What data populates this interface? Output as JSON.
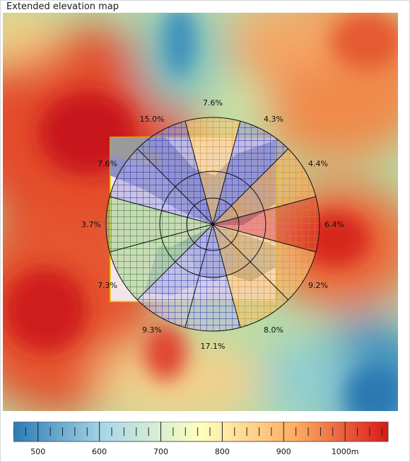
{
  "title": "Extended elevation map",
  "sectors": [
    {
      "label": "7.6%",
      "bearing": 0
    },
    {
      "label": "4.3%",
      "bearing": 30
    },
    {
      "label": "4.4%",
      "bearing": 60
    },
    {
      "label": "6.4%",
      "bearing": 90
    },
    {
      "label": "9.2%",
      "bearing": 120
    },
    {
      "label": "8.0%",
      "bearing": 150
    },
    {
      "label": "17.1%",
      "bearing": 180
    },
    {
      "label": "9.3%",
      "bearing": 210
    },
    {
      "label": "7.3%",
      "bearing": 240
    },
    {
      "label": "3.7%",
      "bearing": 270
    },
    {
      "label": "7.6%",
      "bearing": 300
    },
    {
      "label": "15.0%",
      "bearing": 330
    }
  ],
  "legend": {
    "min": 460,
    "max": 1070,
    "ticks": [
      {
        "value": 500,
        "label": "500"
      },
      {
        "value": 600,
        "label": "600"
      },
      {
        "value": 700,
        "label": "700"
      },
      {
        "value": 800,
        "label": "800"
      },
      {
        "value": 900,
        "label": "900"
      },
      {
        "value": 1000,
        "label": "1000m"
      }
    ],
    "minor_step": 20,
    "colors": [
      "#2c7bb6",
      "#abd9e9",
      "#ffffbf",
      "#fdae61",
      "#d7191c"
    ]
  }
}
